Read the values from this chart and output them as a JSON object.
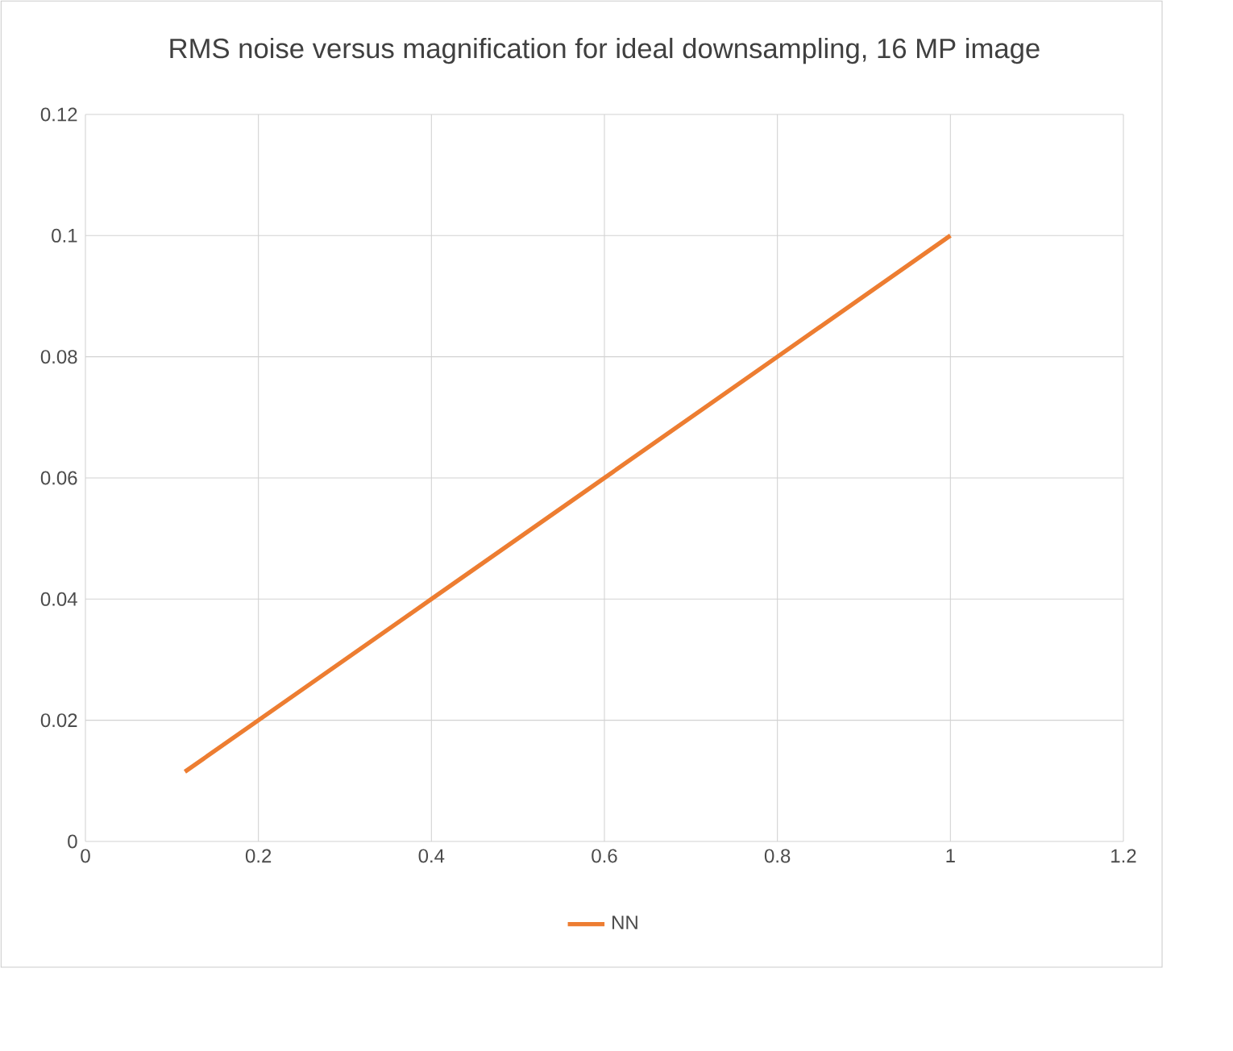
{
  "chart_data": {
    "type": "line",
    "title": "RMS noise versus magnification for ideal downsampling, 16 MP image",
    "x": [
      0.115,
      0.2,
      0.4,
      0.6,
      0.8,
      1.0
    ],
    "series": [
      {
        "name": "NN",
        "color": "#ed7d31",
        "values": [
          0.0115,
          0.02,
          0.04,
          0.06,
          0.08,
          0.1
        ]
      }
    ],
    "xlim": [
      0,
      1.2
    ],
    "xticks": [
      0,
      0.2,
      0.4,
      0.6,
      0.8,
      1,
      1.2
    ],
    "ylim": [
      0,
      0.12
    ],
    "yticks": [
      0,
      0.02,
      0.04,
      0.06,
      0.08,
      0.1,
      0.12
    ],
    "grid": true,
    "legend": "bottom",
    "marker": "none",
    "line_style": "solid"
  }
}
